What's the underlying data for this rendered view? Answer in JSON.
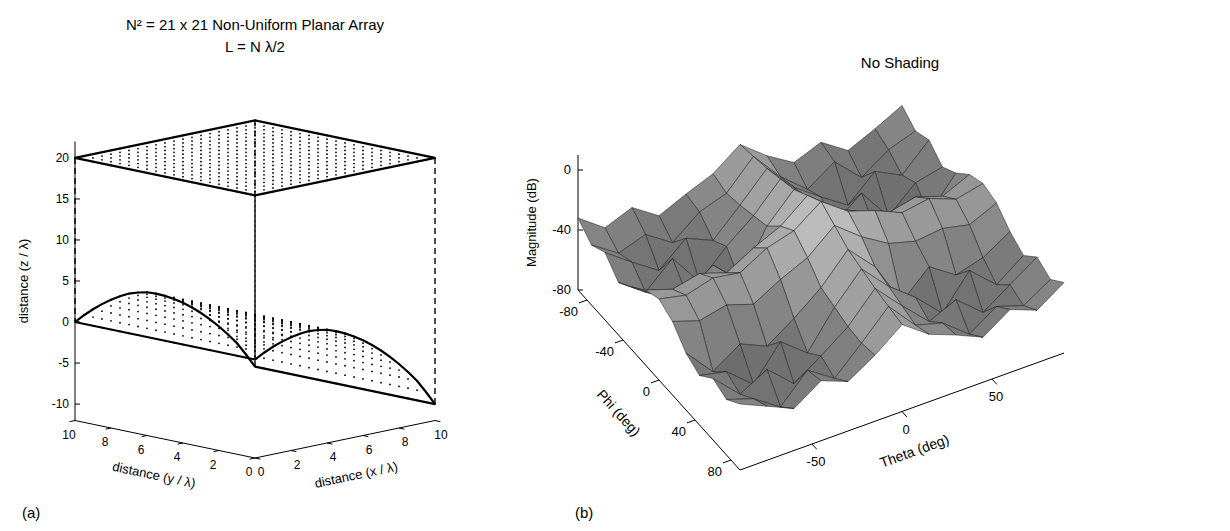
{
  "chart_data": [
    {
      "type": "scatter3d",
      "title": "N² = 21 x 21 Non-Uniform Planar Array",
      "subtitle": "L = N λ/2",
      "panel_label": "(a)",
      "xlabel": "distance (x / λ)",
      "ylabel": "distance (y / λ)",
      "zlabel": "distance (z / λ)",
      "xlim": [
        0,
        10
      ],
      "ylim": [
        0,
        10
      ],
      "zlim": [
        -12,
        22
      ],
      "xticks": [
        0,
        2,
        4,
        6,
        8,
        10
      ],
      "yticks": [
        0,
        2,
        4,
        6,
        8,
        10
      ],
      "zticks": [
        -10,
        -5,
        0,
        5,
        10,
        15,
        20
      ],
      "x": [
        0,
        0.5,
        1,
        1.5,
        2,
        2.5,
        3,
        3.5,
        4,
        4.5,
        5,
        5.5,
        6,
        6.5,
        7,
        7.5,
        8,
        8.5,
        9,
        9.5,
        10
      ],
      "y": [
        0,
        0.5,
        1,
        1.5,
        2,
        2.5,
        3,
        3.5,
        4,
        4.5,
        5,
        5.5,
        6,
        6.5,
        7,
        7.5,
        8,
        8.5,
        9,
        9.5,
        10
      ],
      "top_z": 20,
      "bottom_z": [
        0,
        0.6,
        1.1,
        1.5,
        1.8,
        2.0,
        2.1,
        2.0,
        1.8,
        1.4,
        0.9,
        0.3,
        -0.4,
        -1.2,
        -2.1,
        -3.1,
        -4.2,
        -5.4,
        -6.7,
        -8.3,
        -10
      ],
      "marker": "dot",
      "color": "#000000"
    },
    {
      "type": "surface",
      "title": "No Shading",
      "panel_label": "(b)",
      "xlabel": "Theta (deg)",
      "ylabel": "Phi (deg)",
      "zlabel": "Magnitude (dB)",
      "xlim": [
        -90,
        90
      ],
      "ylim": [
        -90,
        90
      ],
      "zlim": [
        -80,
        10
      ],
      "xticks": [
        -50,
        0,
        50
      ],
      "yticks": [
        -80,
        -40,
        0,
        40,
        80
      ],
      "zticks": [
        -80,
        -40,
        0
      ],
      "x": [
        -90,
        -75,
        -60,
        -45,
        -30,
        -15,
        0,
        15,
        30,
        45,
        60,
        75,
        90
      ],
      "y": [
        -90,
        -75,
        -60,
        -45,
        -30,
        -15,
        0,
        15,
        30,
        45,
        60,
        75,
        90
      ],
      "values": [
        [
          -32,
          -45,
          -38,
          -50,
          -42,
          -35,
          -22,
          -36,
          -47,
          -40,
          -52,
          -44,
          -35
        ],
        [
          -40,
          -52,
          -46,
          -58,
          -44,
          -38,
          -20,
          -40,
          -55,
          -43,
          -60,
          -48,
          -42
        ],
        [
          -35,
          -48,
          -60,
          -45,
          -53,
          -36,
          -18,
          -37,
          -50,
          -62,
          -46,
          -55,
          -38
        ],
        [
          -45,
          -58,
          -42,
          -64,
          -47,
          -33,
          -15,
          -34,
          -58,
          -44,
          -66,
          -50,
          -46
        ],
        [
          -38,
          -50,
          -55,
          -43,
          -60,
          -30,
          -12,
          -31,
          -45,
          -57,
          -49,
          -61,
          -40
        ],
        [
          -30,
          -36,
          -32,
          -38,
          -28,
          -20,
          -6,
          -21,
          -30,
          -37,
          -33,
          -39,
          -31
        ],
        [
          -26,
          -30,
          -25,
          -28,
          -18,
          -13,
          0,
          -13,
          -19,
          -27,
          -24,
          -31,
          -27
        ],
        [
          -31,
          -37,
          -33,
          -39,
          -29,
          -21,
          -6,
          -20,
          -31,
          -36,
          -34,
          -38,
          -30
        ],
        [
          -42,
          -61,
          -49,
          -57,
          -45,
          -31,
          -12,
          -30,
          -60,
          -43,
          -55,
          -50,
          -39
        ],
        [
          -47,
          -51,
          -66,
          -44,
          -58,
          -34,
          -15,
          -33,
          -47,
          -64,
          -42,
          -58,
          -45
        ],
        [
          -39,
          -56,
          -46,
          -62,
          -50,
          -37,
          -18,
          -36,
          -53,
          -45,
          -60,
          -48,
          -36
        ],
        [
          -43,
          -49,
          -61,
          -43,
          -55,
          -38,
          -20,
          -39,
          -44,
          -58,
          -46,
          -52,
          -41
        ],
        [
          -36,
          -44,
          -52,
          -40,
          -47,
          -36,
          -22,
          -35,
          -42,
          -50,
          -38,
          -45,
          -33
        ]
      ],
      "color": "#c8c8c8"
    }
  ]
}
